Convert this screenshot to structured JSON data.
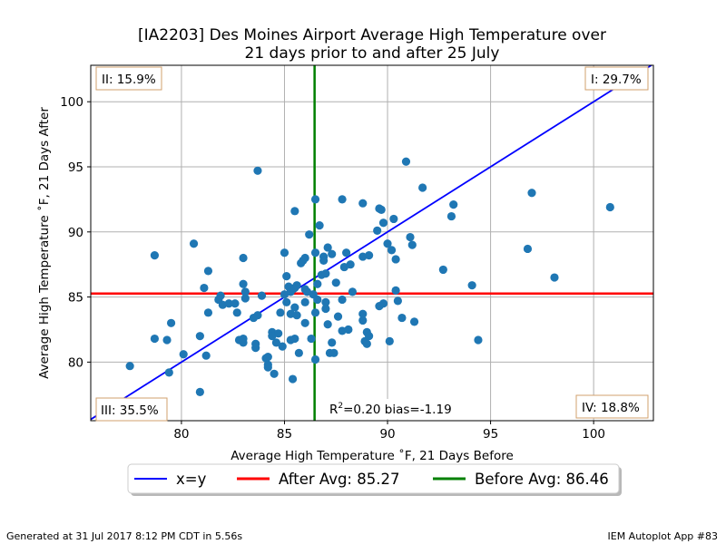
{
  "chart_data": {
    "type": "scatter",
    "title": "[IA2203] Des Moines Airport Average High Temperature over",
    "subtitle": "21 days prior to and after 25 July",
    "xlabel": "Average High Temperature ˚F, 21 Days Before",
    "ylabel": "Average High Temperature ˚F, 21 Days After",
    "xlim": [
      75.6,
      102.9
    ],
    "ylim": [
      75.5,
      102.8
    ],
    "xticks": [
      80,
      85,
      90,
      95,
      100
    ],
    "yticks": [
      80,
      85,
      90,
      95,
      100
    ],
    "grid": true,
    "point_color": "#1f77b4",
    "points": [
      [
        77.5,
        79.7
      ],
      [
        78.7,
        88.2
      ],
      [
        78.7,
        81.8
      ],
      [
        79.3,
        81.7
      ],
      [
        79.4,
        79.2
      ],
      [
        79.5,
        83.0
      ],
      [
        80.1,
        80.6
      ],
      [
        80.6,
        89.1
      ],
      [
        80.9,
        77.7
      ],
      [
        80.9,
        82.0
      ],
      [
        81.1,
        85.7
      ],
      [
        81.2,
        80.5
      ],
      [
        81.3,
        87.0
      ],
      [
        81.3,
        83.8
      ],
      [
        81.8,
        84.8
      ],
      [
        81.9,
        85.1
      ],
      [
        82.0,
        84.4
      ],
      [
        82.3,
        84.5
      ],
      [
        82.6,
        84.5
      ],
      [
        82.7,
        83.8
      ],
      [
        82.8,
        81.7
      ],
      [
        83.0,
        86.0
      ],
      [
        83.0,
        88.0
      ],
      [
        83.0,
        81.8
      ],
      [
        83.0,
        81.5
      ],
      [
        83.1,
        84.9
      ],
      [
        83.1,
        85.4
      ],
      [
        83.5,
        83.4
      ],
      [
        83.6,
        81.4
      ],
      [
        83.6,
        81.1
      ],
      [
        83.7,
        94.7
      ],
      [
        83.7,
        83.6
      ],
      [
        83.9,
        85.1
      ],
      [
        84.1,
        80.3
      ],
      [
        84.2,
        79.8
      ],
      [
        84.2,
        80.4
      ],
      [
        84.2,
        79.6
      ],
      [
        84.4,
        82.3
      ],
      [
        84.4,
        82.0
      ],
      [
        84.5,
        79.1
      ],
      [
        84.6,
        81.5
      ],
      [
        84.7,
        82.2
      ],
      [
        84.8,
        83.8
      ],
      [
        84.9,
        81.2
      ],
      [
        85.0,
        88.4
      ],
      [
        85.0,
        85.2
      ],
      [
        85.1,
        84.6
      ],
      [
        85.1,
        86.6
      ],
      [
        85.2,
        85.8
      ],
      [
        85.3,
        85.4
      ],
      [
        85.3,
        83.7
      ],
      [
        85.3,
        81.7
      ],
      [
        85.4,
        78.7
      ],
      [
        85.4,
        85.6
      ],
      [
        85.5,
        91.6
      ],
      [
        85.5,
        85.7
      ],
      [
        85.5,
        84.2
      ],
      [
        85.5,
        81.8
      ],
      [
        85.6,
        85.9
      ],
      [
        85.6,
        83.6
      ],
      [
        85.7,
        80.7
      ],
      [
        85.8,
        87.6
      ],
      [
        85.9,
        87.8
      ],
      [
        86.0,
        88.0
      ],
      [
        86.0,
        85.6
      ],
      [
        86.0,
        84.6
      ],
      [
        86.0,
        83.0
      ],
      [
        86.1,
        85.4
      ],
      [
        86.2,
        89.8
      ],
      [
        86.3,
        81.8
      ],
      [
        86.4,
        85.2
      ],
      [
        86.5,
        92.5
      ],
      [
        86.5,
        88.4
      ],
      [
        86.5,
        83.8
      ],
      [
        86.5,
        80.2
      ],
      [
        86.6,
        86.0
      ],
      [
        86.6,
        84.8
      ],
      [
        86.7,
        90.5
      ],
      [
        86.8,
        86.7
      ],
      [
        86.9,
        88.1
      ],
      [
        86.9,
        87.8
      ],
      [
        87.0,
        86.8
      ],
      [
        87.0,
        84.6
      ],
      [
        87.0,
        84.1
      ],
      [
        87.1,
        88.8
      ],
      [
        87.1,
        82.9
      ],
      [
        87.2,
        80.7
      ],
      [
        87.3,
        88.3
      ],
      [
        87.3,
        81.5
      ],
      [
        87.4,
        80.7
      ],
      [
        87.5,
        86.1
      ],
      [
        87.6,
        83.5
      ],
      [
        87.8,
        92.5
      ],
      [
        87.8,
        84.8
      ],
      [
        87.8,
        82.4
      ],
      [
        87.9,
        87.3
      ],
      [
        88.0,
        88.4
      ],
      [
        88.1,
        82.5
      ],
      [
        88.2,
        87.5
      ],
      [
        88.3,
        85.4
      ],
      [
        88.8,
        92.2
      ],
      [
        88.8,
        88.1
      ],
      [
        88.8,
        83.7
      ],
      [
        88.8,
        83.2
      ],
      [
        88.9,
        81.6
      ],
      [
        89.0,
        82.3
      ],
      [
        89.0,
        81.4
      ],
      [
        89.1,
        88.2
      ],
      [
        89.1,
        82.0
      ],
      [
        89.5,
        90.1
      ],
      [
        89.6,
        91.8
      ],
      [
        89.6,
        84.3
      ],
      [
        89.7,
        91.7
      ],
      [
        89.8,
        90.7
      ],
      [
        89.8,
        84.5
      ],
      [
        90.0,
        89.1
      ],
      [
        90.1,
        81.6
      ],
      [
        90.2,
        88.6
      ],
      [
        90.3,
        91.0
      ],
      [
        90.4,
        87.9
      ],
      [
        90.4,
        85.5
      ],
      [
        90.5,
        84.7
      ],
      [
        90.7,
        83.4
      ],
      [
        90.9,
        95.4
      ],
      [
        91.1,
        89.6
      ],
      [
        91.2,
        89.0
      ],
      [
        91.3,
        83.1
      ],
      [
        91.7,
        93.4
      ],
      [
        92.7,
        87.1
      ],
      [
        93.1,
        91.2
      ],
      [
        93.2,
        92.1
      ],
      [
        94.1,
        85.9
      ],
      [
        94.4,
        81.7
      ],
      [
        96.8,
        88.7
      ],
      [
        97.0,
        93.0
      ],
      [
        98.1,
        86.5
      ],
      [
        100.8,
        91.9
      ]
    ],
    "lines": {
      "x_equals_y": {
        "label": "x=y",
        "color": "#0000ff"
      },
      "after_avg": {
        "label": "After Avg: 85.27",
        "value": 85.27,
        "color": "#ff0000"
      },
      "before_avg": {
        "label": "Before Avg: 86.46",
        "value": 86.46,
        "color": "#008000"
      }
    },
    "quadrants": {
      "q1": "I: 29.7%",
      "q2": "II: 15.9%",
      "q3": "III: 35.5%",
      "q4": "IV: 18.8%"
    },
    "stats_text": {
      "r2_prefix": "R",
      "r2_sup": "2",
      "rest": "=0.20 bias=-1.19"
    },
    "legend": [
      "x=y",
      "After Avg: 85.27",
      "Before Avg: 86.46"
    ],
    "legend_position": "below plot"
  },
  "footer": {
    "left": "Generated at 31 Jul 2017 8:12 PM CDT in 5.56s",
    "right": "IEM Autoplot App #83"
  }
}
